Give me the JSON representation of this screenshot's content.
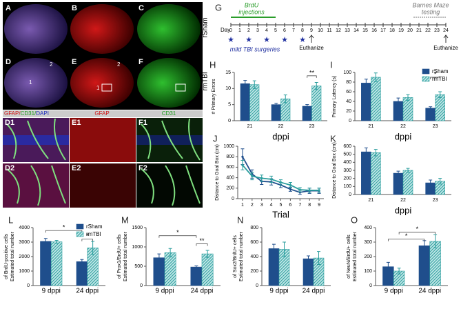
{
  "images": {
    "panel_labels": [
      "A",
      "B",
      "C",
      "D",
      "E",
      "F"
    ],
    "row_labels": [
      "rSham",
      "rmTBI"
    ],
    "roi_labels": [
      "1",
      "2"
    ],
    "stain_header": {
      "merge": [
        "GFAP/",
        "CD31/",
        "DAPI"
      ],
      "gfap": "GFAP",
      "cd31": "CD31"
    },
    "subpanels": [
      "D1",
      "E1",
      "F1",
      "D2",
      "E2",
      "F2"
    ]
  },
  "timeline": {
    "panel": "G",
    "injection_label": [
      "BrdU",
      "injections"
    ],
    "testing_label": [
      "Barnes Maze",
      "testing"
    ],
    "day_label": "Day",
    "days": [
      0,
      1,
      2,
      3,
      4,
      5,
      6,
      7,
      8,
      9,
      10,
      11,
      12,
      13,
      14,
      15,
      16,
      17,
      18,
      19,
      20,
      21,
      22,
      23,
      24
    ],
    "surgery_label": "mild TBI surgeries",
    "euthanize_labels": [
      "Euthanize",
      "Euthanize"
    ]
  },
  "chart_data": [
    {
      "panel": "H",
      "type": "bar",
      "categories": [
        "21",
        "22",
        "23"
      ],
      "series": [
        {
          "color": "#1f4e8c",
          "values": [
            11.5,
            5,
            4.5
          ],
          "errors": [
            1,
            0.4,
            0.5
          ]
        },
        {
          "color": "#2a9d9d",
          "pattern": "hatch",
          "values": [
            11.2,
            6.8,
            10.8
          ],
          "errors": [
            1.2,
            1.2,
            1.1
          ]
        }
      ],
      "ylim": [
        0,
        15
      ],
      "yticks": [
        0,
        5,
        10,
        15
      ],
      "ylabel": [
        "# Primary Errors"
      ],
      "xlabel": "dppi",
      "annotations": [
        "**"
      ]
    },
    {
      "panel": "I",
      "type": "bar",
      "categories": [
        "21",
        "22",
        "23"
      ],
      "series": [
        {
          "name": "rSham",
          "color": "#1f4e8c",
          "values": [
            78,
            40,
            26
          ],
          "errors": [
            8,
            7,
            3
          ]
        },
        {
          "name": "rmTBI",
          "color": "#2a9d9d",
          "pattern": "hatch",
          "values": [
            90,
            48,
            54
          ],
          "errors": [
            9,
            6,
            6
          ]
        }
      ],
      "ylim": [
        0,
        100
      ],
      "yticks": [
        0,
        20,
        40,
        60,
        80,
        100
      ],
      "ylabel": [
        "Primary Latency (s)"
      ],
      "xlabel": "dppi",
      "legend": "upper right",
      "annotations": [
        "*"
      ]
    },
    {
      "panel": "J",
      "type": "line",
      "x": [
        1,
        2,
        3,
        4,
        5,
        6,
        7,
        8,
        9
      ],
      "series": [
        {
          "color": "#1f4e8c",
          "values": [
            800,
            470,
            330,
            320,
            260,
            180,
            120,
            150,
            150
          ],
          "errors": [
            150,
            80,
            60,
            60,
            50,
            40,
            40,
            50,
            50
          ]
        },
        {
          "color": "#2a9d9d",
          "values": [
            640,
            430,
            390,
            370,
            310,
            260,
            170,
            160,
            160
          ],
          "errors": [
            90,
            70,
            60,
            60,
            50,
            50,
            40,
            40,
            40
          ]
        }
      ],
      "xlim": [
        0.5,
        9.5
      ],
      "xticks": [
        1,
        2,
        3,
        4,
        5,
        6,
        7,
        8,
        9
      ],
      "ylim": [
        0,
        1000
      ],
      "yticks": [
        0,
        200,
        400,
        600,
        800,
        1000
      ],
      "ylabel": [
        "Distance to Goal Box (cm)"
      ],
      "xlabel": "Trial"
    },
    {
      "panel": "K",
      "type": "bar",
      "categories": [
        "21",
        "22",
        "23"
      ],
      "series": [
        {
          "color": "#1f4e8c",
          "values": [
            530,
            265,
            145
          ],
          "errors": [
            50,
            25,
            35
          ]
        },
        {
          "color": "#2a9d9d",
          "pattern": "hatch",
          "values": [
            520,
            300,
            165
          ],
          "errors": [
            40,
            25,
            35
          ]
        }
      ],
      "ylim": [
        0,
        600
      ],
      "yticks": [
        0,
        100,
        200,
        300,
        400,
        500,
        600
      ],
      "ylabel": [
        "Distance to Goal Box (cm)"
      ],
      "xlabel": "dppi"
    },
    {
      "panel": "L",
      "type": "bar",
      "categories": [
        "9 dppi",
        "24 dppi"
      ],
      "series": [
        {
          "name": "rSham",
          "color": "#1f4e8c",
          "values": [
            3050,
            1650
          ],
          "errors": [
            200,
            150
          ]
        },
        {
          "name": "rmTBI",
          "color": "#2a9d9d",
          "pattern": "hatch",
          "values": [
            3020,
            2600
          ],
          "errors": [
            100,
            450
          ]
        }
      ],
      "ylim": [
        0,
        4000
      ],
      "yticks": [
        0,
        1000,
        2000,
        3000,
        4000
      ],
      "ylabel": [
        "Estimated total number",
        "of BrdU-positive cells"
      ],
      "legend": "upper right",
      "annotations": [
        "*",
        "*"
      ]
    },
    {
      "panel": "M",
      "type": "bar",
      "categories": [
        "9 dppi",
        "24 dppi"
      ],
      "series": [
        {
          "color": "#1f4e8c",
          "values": [
            720,
            480
          ],
          "errors": [
            100,
            30
          ]
        },
        {
          "color": "#2a9d9d",
          "pattern": "hatch",
          "values": [
            850,
            820
          ],
          "errors": [
            110,
            90
          ]
        }
      ],
      "ylim": [
        0,
        1500
      ],
      "yticks": [
        0,
        500,
        1000,
        1500
      ],
      "ylabel": [
        "Estimated total number",
        "of Prox1/BrdU+ cells"
      ],
      "annotations": [
        "*",
        "**"
      ]
    },
    {
      "panel": "N",
      "type": "bar",
      "categories": [
        "9 dppi",
        "24 dppi"
      ],
      "series": [
        {
          "color": "#1f4e8c",
          "values": [
            510,
            370
          ],
          "errors": [
            60,
            40
          ]
        },
        {
          "color": "#2a9d9d",
          "pattern": "hatch",
          "values": [
            500,
            380
          ],
          "errors": [
            100,
            90
          ]
        }
      ],
      "ylim": [
        0,
        800
      ],
      "yticks": [
        0,
        200,
        400,
        600,
        800
      ],
      "ylabel": [
        "Estimated total number",
        "of Sox2/BrdU+ cells"
      ]
    },
    {
      "panel": "O",
      "type": "bar",
      "categories": [
        "9 dppi",
        "24 dppi"
      ],
      "series": [
        {
          "color": "#1f4e8c",
          "values": [
            130,
            275
          ],
          "errors": [
            30,
            35
          ]
        },
        {
          "color": "#2a9d9d",
          "pattern": "hatch",
          "values": [
            100,
            305
          ],
          "errors": [
            20,
            45
          ]
        }
      ],
      "ylim": [
        0,
        400
      ],
      "yticks": [
        0,
        100,
        200,
        300,
        400
      ],
      "ylabel": [
        "Estimated total number",
        "of NeuN/BrdU+ cells"
      ],
      "annotations": [
        "*",
        "*"
      ]
    }
  ]
}
